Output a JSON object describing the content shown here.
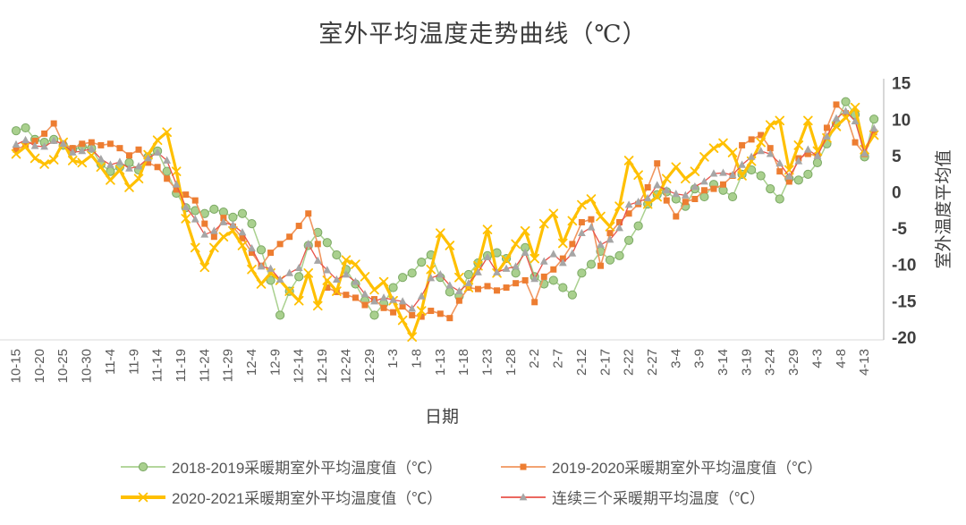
{
  "title": "室外平均温度走势曲线（℃）",
  "axes": {
    "x_title": "日期",
    "y_title": "室外温度平均值",
    "y_ticks": [
      15,
      10,
      5,
      0,
      -5,
      -10,
      -15,
      -20
    ],
    "y_min": -20,
    "y_max": 15,
    "x_tick_step_days": 5,
    "x_tick_labels": [
      "10-15",
      "10-20",
      "10-25",
      "10-30",
      "11-4",
      "11-9",
      "11-14",
      "11-19",
      "11-24",
      "11-29",
      "12-4",
      "12-9",
      "12-14",
      "12-19",
      "12-24",
      "12-29",
      "1-3",
      "1-8",
      "1-13",
      "1-18",
      "1-23",
      "1-28",
      "2-2",
      "2-7",
      "2-12",
      "2-17",
      "2-22",
      "2-27",
      "3-4",
      "3-9",
      "3-14",
      "3-19",
      "3-24",
      "3-29",
      "4-3",
      "4-8",
      "4-13"
    ]
  },
  "chart_data": {
    "type": "line",
    "x_description": "Daily outdoor mean temperature across heating seasons, dates 10-15 through 4-15; values sampled every 2 days starting at 10-15",
    "sample_step_days": 2,
    "x_start_label": "10-15",
    "legend_position": "bottom",
    "grid": false,
    "series": [
      {
        "name": "2018-2019采暖期室外平均温度值（℃）",
        "marker": "circle",
        "color": "#A9D08E",
        "marker_stroke": "#7CA965",
        "line_color": "#A9D08E",
        "values": [
          8.6,
          9.0,
          7.4,
          7.0,
          7.4,
          6.6,
          6.0,
          6.4,
          6.2,
          4.0,
          3.0,
          3.6,
          4.2,
          3.2,
          5.0,
          5.8,
          3.0,
          0.0,
          -2.0,
          -2.4,
          -2.8,
          -2.2,
          -2.6,
          -3.3,
          -2.8,
          -4.2,
          -7.8,
          -12.0,
          -16.8,
          -13.5,
          -11.5,
          -7.2,
          -5.4,
          -6.8,
          -8.5,
          -10.5,
          -12.5,
          -14.8,
          -16.8,
          -15.2,
          -13.0,
          -11.6,
          -11.0,
          -9.5,
          -8.5,
          -11.6,
          -13.6,
          -14.2,
          -11.2,
          -9.6,
          -8.6,
          -8.2,
          -9.0,
          -11.0,
          -7.5,
          -11.5,
          -12.5,
          -12.0,
          -13.0,
          -14.0,
          -11.0,
          -9.8,
          -8.0,
          -9.2,
          -8.6,
          -6.5,
          -4.5,
          -1.5,
          -0.2,
          0.2,
          -0.8,
          -1.8,
          0.6,
          -0.5,
          1.2,
          0.4,
          -0.5,
          2.6,
          3.2,
          2.4,
          0.6,
          -0.8,
          2.0,
          1.8,
          2.6,
          4.2,
          6.8,
          9.6,
          12.6,
          10.8,
          5.0,
          10.2
        ]
      },
      {
        "name": "2019-2020采暖期室外平均温度值（℃）",
        "marker": "square",
        "color": "#ED7D31",
        "marker_stroke": "#ED7D31",
        "line_color": "#F0965E",
        "values": [
          6.0,
          6.6,
          7.2,
          8.2,
          9.6,
          6.8,
          6.2,
          6.8,
          7.0,
          6.6,
          6.8,
          6.2,
          5.2,
          6.0,
          4.2,
          3.6,
          2.0,
          0.5,
          -0.2,
          -1.0,
          -4.2,
          -6.0,
          -3.4,
          -4.6,
          -6.2,
          -8.2,
          -10.0,
          -8.2,
          -7.0,
          -6.0,
          -4.5,
          -2.8,
          -7.0,
          -13.0,
          -13.6,
          -14.0,
          -14.4,
          -15.4,
          -14.6,
          -15.8,
          -16.4,
          -15.6,
          -16.8,
          -17.0,
          -16.2,
          -16.6,
          -17.2,
          -14.8,
          -13.0,
          -13.2,
          -12.8,
          -13.4,
          -13.0,
          -12.4,
          -12.0,
          -15.0,
          -11.5,
          -10.5,
          -9.0,
          -7.0,
          -4.0,
          -3.6,
          -10.0,
          -5.5,
          -4.0,
          -2.8,
          -1.5,
          0.8,
          4.1,
          -1.0,
          -3.2,
          -1.2,
          -0.8,
          0.4,
          0.6,
          1.2,
          2.4,
          6.6,
          7.4,
          8.0,
          6.2,
          3.0,
          1.6,
          4.8,
          5.4,
          5.2,
          9.0,
          12.2,
          11.0,
          7.0,
          5.4,
          8.4
        ]
      },
      {
        "name": "2020-2021采暖期室外平均温度值（℃）",
        "marker": "x",
        "color": "#FFC000",
        "marker_stroke": "#FFC000",
        "line_color": "#FFC000",
        "values": [
          5.4,
          6.4,
          4.8,
          4.0,
          4.6,
          7.0,
          4.5,
          4.2,
          5.2,
          3.6,
          1.8,
          3.2,
          0.8,
          2.0,
          5.3,
          7.3,
          8.4,
          3.0,
          -3.5,
          -7.5,
          -10.2,
          -7.5,
          -6.0,
          -5.2,
          -7.2,
          -10.5,
          -12.5,
          -11.0,
          -12.0,
          -13.5,
          -14.8,
          -11.0,
          -15.5,
          -12.0,
          -13.5,
          -9.2,
          -9.8,
          -11.5,
          -13.3,
          -12.2,
          -14.8,
          -17.5,
          -19.8,
          -16.2,
          -10.5,
          -5.5,
          -7.2,
          -11.6,
          -13.0,
          -10.0,
          -5.0,
          -11.0,
          -9.2,
          -7.0,
          -5.2,
          -9.0,
          -4.2,
          -2.8,
          -6.9,
          -3.8,
          -1.6,
          -0.8,
          -3.2,
          -4.6,
          -1.8,
          4.5,
          2.5,
          -1.5,
          -0.5,
          2.0,
          3.6,
          2.0,
          3.0,
          5.0,
          6.2,
          6.9,
          5.6,
          2.4,
          4.4,
          7.0,
          9.4,
          10.0,
          3.2,
          6.6,
          10.0,
          5.8,
          7.6,
          9.2,
          10.4,
          11.8,
          6.0,
          8.0
        ]
      },
      {
        "name": "连续三个采暖期平均温度（℃）",
        "marker": "triangle",
        "color": "#A6A6A6",
        "marker_stroke": "#A6A6A6",
        "line_color": "#E8534A",
        "values": [
          6.7,
          7.3,
          6.5,
          6.4,
          7.2,
          6.8,
          5.6,
          5.8,
          6.1,
          4.7,
          3.9,
          4.3,
          3.4,
          3.7,
          4.8,
          5.6,
          4.5,
          1.2,
          -1.9,
          -3.6,
          -5.7,
          -5.2,
          -4.0,
          -4.4,
          -5.4,
          -7.6,
          -10.1,
          -10.4,
          -11.9,
          -11.0,
          -10.3,
          -7.0,
          -9.3,
          -10.6,
          -11.9,
          -11.2,
          -12.2,
          -13.9,
          -14.9,
          -14.4,
          -14.7,
          -14.9,
          -15.9,
          -14.2,
          -11.7,
          -11.2,
          -12.7,
          -13.5,
          -12.4,
          -10.9,
          -8.8,
          -10.9,
          -10.4,
          -10.1,
          -8.2,
          -11.8,
          -9.4,
          -8.4,
          -9.6,
          -8.3,
          -5.5,
          -4.7,
          -7.1,
          -6.4,
          -4.8,
          -1.6,
          -1.2,
          -0.7,
          1.1,
          0.4,
          -0.1,
          -0.3,
          0.9,
          1.6,
          2.7,
          2.8,
          2.5,
          3.9,
          5.0,
          5.8,
          5.4,
          4.1,
          2.3,
          4.4,
          6.0,
          5.1,
          7.8,
          10.3,
          11.3,
          9.9,
          5.5,
          8.9
        ]
      }
    ]
  }
}
